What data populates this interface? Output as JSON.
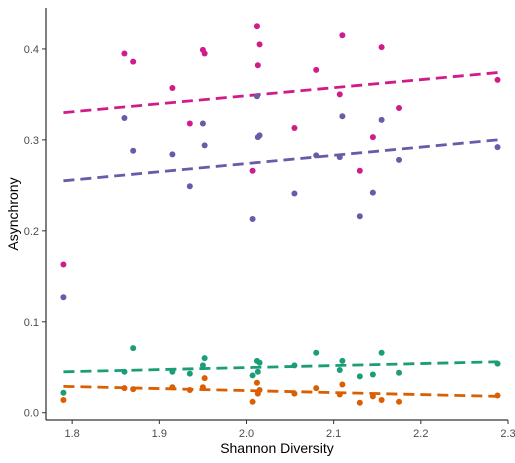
{
  "chart_data": {
    "type": "scatter",
    "xlabel": "Shannon Diversity",
    "ylabel": "Asynchrony",
    "xlim": [
      1.77,
      2.3
    ],
    "ylim": [
      -0.008,
      0.445
    ],
    "x_ticks": [
      "1.8",
      "1.9",
      "2.0",
      "2.1",
      "2.2",
      "2.3"
    ],
    "y_ticks": [
      "0.0",
      "0.1",
      "0.2",
      "0.3",
      "0.4"
    ],
    "grid": false,
    "legend": "none",
    "series": [
      {
        "color": "#d01c8b",
        "points": [
          [
            1.79,
            0.163
          ],
          [
            1.86,
            0.395
          ],
          [
            1.87,
            0.386
          ],
          [
            1.915,
            0.357
          ],
          [
            1.935,
            0.318
          ],
          [
            1.95,
            0.399
          ],
          [
            1.952,
            0.395
          ],
          [
            2.007,
            0.266
          ],
          [
            2.012,
            0.425
          ],
          [
            2.013,
            0.382
          ],
          [
            2.015,
            0.405
          ],
          [
            2.055,
            0.313
          ],
          [
            2.08,
            0.377
          ],
          [
            2.107,
            0.35
          ],
          [
            2.11,
            0.415
          ],
          [
            2.13,
            0.266
          ],
          [
            2.145,
            0.303
          ],
          [
            2.155,
            0.402
          ],
          [
            2.175,
            0.335
          ],
          [
            2.288,
            0.366
          ]
        ],
        "trend": [
          [
            1.79,
            0.33
          ],
          [
            2.288,
            0.374
          ]
        ]
      },
      {
        "color": "#6a5aa8",
        "points": [
          [
            1.79,
            0.127
          ],
          [
            1.86,
            0.324
          ],
          [
            1.87,
            0.288
          ],
          [
            1.915,
            0.284
          ],
          [
            1.935,
            0.249
          ],
          [
            1.95,
            0.318
          ],
          [
            1.952,
            0.294
          ],
          [
            2.007,
            0.213
          ],
          [
            2.012,
            0.348
          ],
          [
            2.013,
            0.303
          ],
          [
            2.015,
            0.305
          ],
          [
            2.055,
            0.241
          ],
          [
            2.08,
            0.283
          ],
          [
            2.107,
            0.281
          ],
          [
            2.11,
            0.326
          ],
          [
            2.13,
            0.216
          ],
          [
            2.145,
            0.242
          ],
          [
            2.155,
            0.322
          ],
          [
            2.175,
            0.278
          ],
          [
            2.288,
            0.292
          ]
        ],
        "trend": [
          [
            1.79,
            0.255
          ],
          [
            2.288,
            0.3
          ]
        ]
      },
      {
        "color": "#1b9e77",
        "points": [
          [
            1.79,
            0.022
          ],
          [
            1.86,
            0.045
          ],
          [
            1.87,
            0.071
          ],
          [
            1.915,
            0.045
          ],
          [
            1.935,
            0.043
          ],
          [
            1.95,
            0.052
          ],
          [
            1.952,
            0.06
          ],
          [
            2.007,
            0.041
          ],
          [
            2.012,
            0.057
          ],
          [
            2.013,
            0.045
          ],
          [
            2.015,
            0.055
          ],
          [
            2.055,
            0.052
          ],
          [
            2.08,
            0.066
          ],
          [
            2.107,
            0.047
          ],
          [
            2.11,
            0.057
          ],
          [
            2.13,
            0.04
          ],
          [
            2.145,
            0.042
          ],
          [
            2.155,
            0.066
          ],
          [
            2.175,
            0.044
          ],
          [
            2.288,
            0.054
          ]
        ],
        "trend": [
          [
            1.79,
            0.045
          ],
          [
            2.288,
            0.056
          ]
        ]
      },
      {
        "color": "#d95f02",
        "points": [
          [
            1.79,
            0.014
          ],
          [
            1.86,
            0.027
          ],
          [
            1.87,
            0.026
          ],
          [
            1.915,
            0.028
          ],
          [
            1.935,
            0.025
          ],
          [
            1.95,
            0.028
          ],
          [
            1.952,
            0.038
          ],
          [
            2.007,
            0.012
          ],
          [
            2.012,
            0.033
          ],
          [
            2.013,
            0.021
          ],
          [
            2.015,
            0.025
          ],
          [
            2.055,
            0.021
          ],
          [
            2.08,
            0.027
          ],
          [
            2.107,
            0.02
          ],
          [
            2.11,
            0.031
          ],
          [
            2.13,
            0.011
          ],
          [
            2.145,
            0.018
          ],
          [
            2.155,
            0.014
          ],
          [
            2.175,
            0.012
          ],
          [
            2.288,
            0.019
          ]
        ],
        "trend": [
          [
            1.79,
            0.029
          ],
          [
            2.288,
            0.018
          ]
        ]
      }
    ]
  }
}
